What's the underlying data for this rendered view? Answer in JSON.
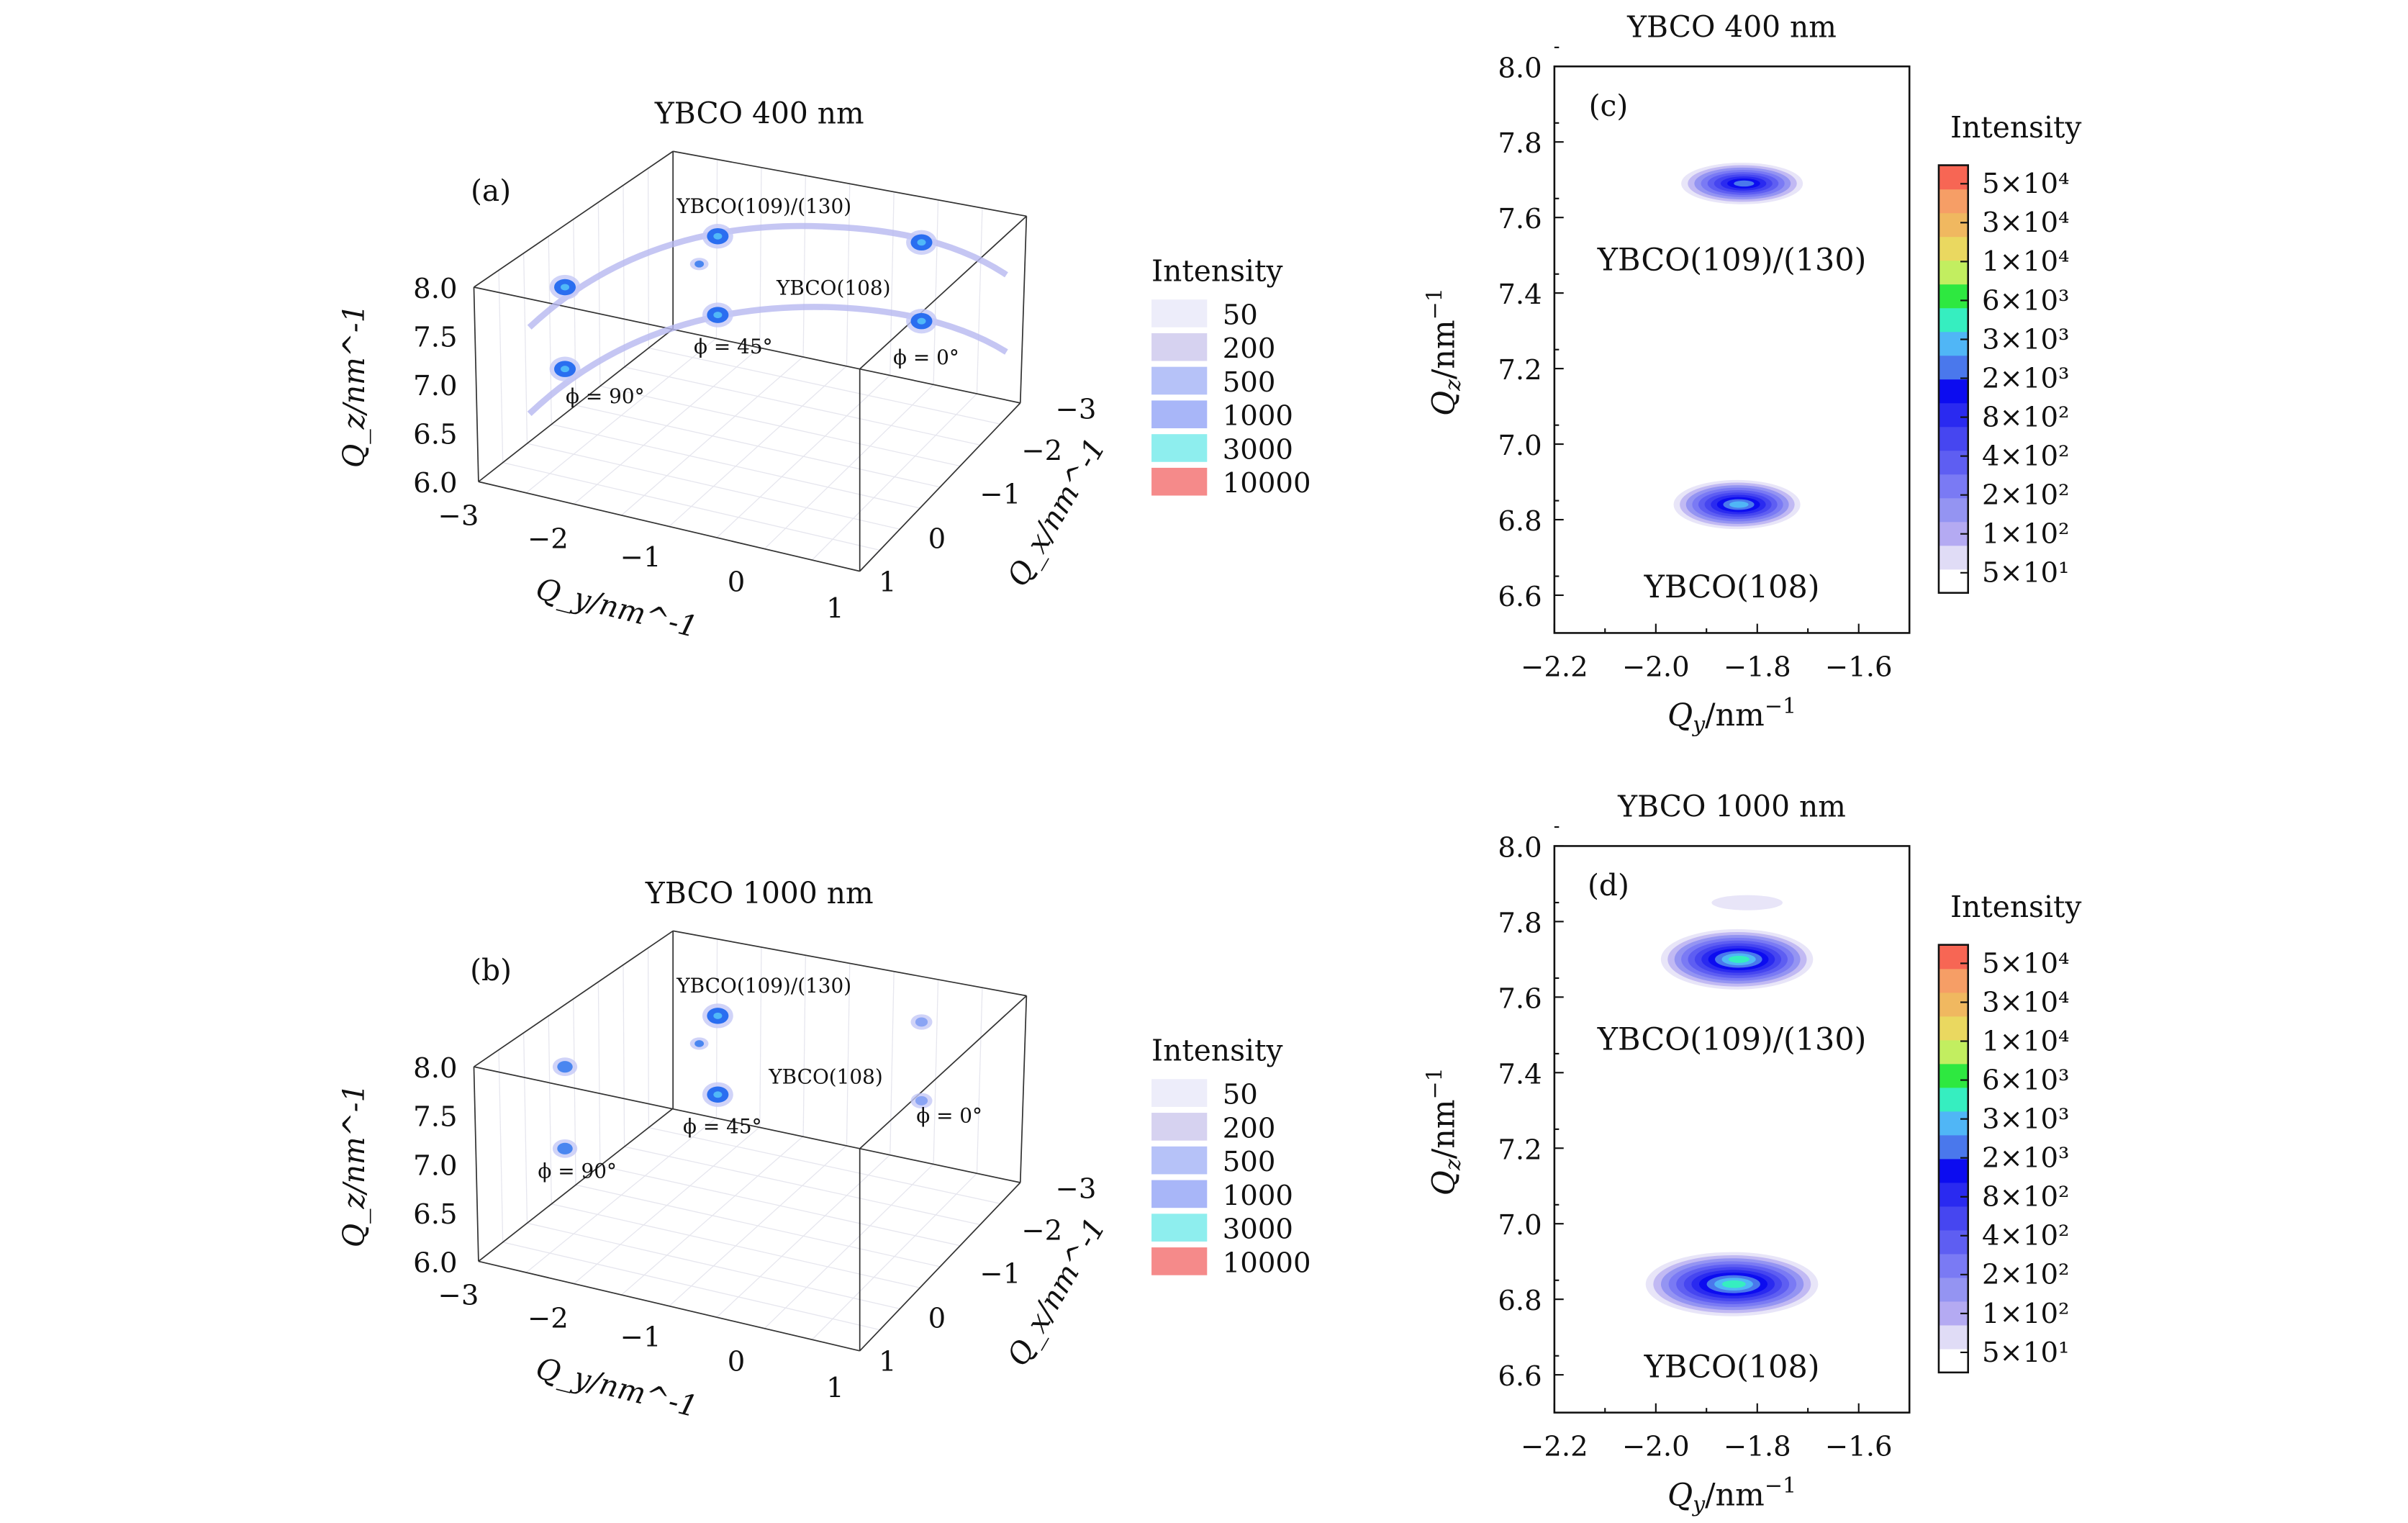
{
  "chart_data": [
    {
      "id": "a",
      "type": "scatter",
      "projection": "3d",
      "title": "YBCO 400 nm",
      "panel_label": "(a)",
      "xlabel": "Q_x/nm^-1",
      "ylabel": "Q_y/nm^-1",
      "zlabel": "Q_z/nm^-1",
      "xlabel_parts": [
        "Q",
        "x",
        "/nm",
        "−1"
      ],
      "ylabel_parts": [
        "Q",
        "y",
        "/nm",
        "−1"
      ],
      "zlabel_parts": [
        "Q",
        "z",
        "/nm",
        "−1"
      ],
      "xticks": [
        "−3",
        "−2",
        "−1",
        "0",
        "1"
      ],
      "yticks": [
        "−3",
        "−2",
        "−1",
        "0",
        "1"
      ],
      "zticks": [
        "8.0",
        "7.5",
        "7.0",
        "6.5",
        "6.0"
      ],
      "xlim": [
        -3,
        1
      ],
      "ylim": [
        -3,
        1
      ],
      "zlim": [
        6.0,
        8.0
      ],
      "annotations": [
        "YBCO(109)/(130)",
        "YBCO(108)",
        "ϕ = 45°",
        "ϕ = 0°",
        "ϕ = 90°"
      ],
      "legend_title": "Intensity",
      "legend": [
        {
          "label": "50",
          "color": "#ededfa"
        },
        {
          "label": "200",
          "color": "#d6d2f0"
        },
        {
          "label": "500",
          "color": "#b6c2f8"
        },
        {
          "label": "1000",
          "color": "#a8b6f8"
        },
        {
          "label": "3000",
          "color": "#8eeeee"
        },
        {
          "label": "10000",
          "color": "#f58a8a"
        }
      ],
      "legend_placement": "right",
      "arcs": true,
      "peaks": [
        {
          "peak": "YBCO(109)/(130)",
          "phi": 90,
          "intensity": 3000
        },
        {
          "peak": "YBCO(109)/(130)",
          "phi": 45,
          "intensity": 3000
        },
        {
          "peak": "YBCO(109)/(130)",
          "phi": 0,
          "intensity": 3000
        },
        {
          "peak": "YBCO(108)",
          "phi": 90,
          "intensity": 3000
        },
        {
          "peak": "YBCO(108)",
          "phi": 45,
          "intensity": 3000
        },
        {
          "peak": "YBCO(108)",
          "phi": 0,
          "intensity": 3000
        },
        {
          "peak": "minor",
          "phi": 50,
          "intensity": 1000
        }
      ]
    },
    {
      "id": "b",
      "type": "scatter",
      "projection": "3d",
      "title": "YBCO 1000 nm",
      "panel_label": "(b)",
      "xlabel": "Q_x/nm^-1",
      "ylabel": "Q_y/nm^-1",
      "zlabel": "Q_z/nm^-1",
      "xlabel_parts": [
        "Q",
        "x",
        "/nm",
        "−1"
      ],
      "ylabel_parts": [
        "Q",
        "y",
        "/nm",
        "−1"
      ],
      "zlabel_parts": [
        "Q",
        "z",
        "/nm",
        "−1"
      ],
      "xticks": [
        "−3",
        "−2",
        "−1",
        "0",
        "1"
      ],
      "yticks": [
        "−3",
        "−2",
        "−1",
        "0",
        "1"
      ],
      "zticks": [
        "8.0",
        "7.5",
        "7.0",
        "6.5",
        "6.0"
      ],
      "xlim": [
        -3,
        1
      ],
      "ylim": [
        -3,
        1
      ],
      "zlim": [
        6.0,
        8.0
      ],
      "annotations": [
        "YBCO(109)/(130)",
        "YBCO(108)",
        "ϕ = 45°",
        "ϕ = 0°",
        "ϕ = 90°"
      ],
      "legend_title": "Intensity",
      "legend": [
        {
          "label": "50",
          "color": "#ededfa"
        },
        {
          "label": "200",
          "color": "#d6d2f0"
        },
        {
          "label": "500",
          "color": "#b6c2f8"
        },
        {
          "label": "1000",
          "color": "#a8b6f8"
        },
        {
          "label": "3000",
          "color": "#8eeeee"
        },
        {
          "label": "10000",
          "color": "#f58a8a"
        }
      ],
      "legend_placement": "right",
      "arcs": false,
      "peaks": [
        {
          "peak": "YBCO(109)/(130)",
          "phi": 90,
          "intensity": 1000
        },
        {
          "peak": "YBCO(109)/(130)",
          "phi": 45,
          "intensity": 3000
        },
        {
          "peak": "YBCO(109)/(130)",
          "phi": 0,
          "intensity": 500
        },
        {
          "peak": "YBCO(108)",
          "phi": 90,
          "intensity": 1000
        },
        {
          "peak": "YBCO(108)",
          "phi": 45,
          "intensity": 3000
        },
        {
          "peak": "YBCO(108)",
          "phi": 0,
          "intensity": 500
        },
        {
          "peak": "minor",
          "phi": 50,
          "intensity": 1000
        }
      ]
    },
    {
      "id": "c",
      "type": "heatmap",
      "title": "YBCO 400 nm",
      "panel_label": "(c)",
      "xlabel_parts": [
        "Q",
        "y",
        "/nm",
        "−1"
      ],
      "ylabel_parts": [
        "Q",
        "z",
        "/nm",
        "−1"
      ],
      "xlim": [
        -2.2,
        -1.5
      ],
      "ylim": [
        6.5,
        8.0
      ],
      "xticks": [
        -2.2,
        -2.0,
        -1.8,
        -1.6
      ],
      "xtick_labels": [
        "−2.2",
        "−2.0",
        "−1.8",
        "−1.6"
      ],
      "yticks": [
        6.6,
        6.8,
        7.0,
        7.2,
        7.4,
        7.6,
        7.8,
        8.0
      ],
      "ytick_labels": [
        "6.6",
        "6.8",
        "7.0",
        "7.2",
        "7.4",
        "7.6",
        "7.8",
        "8.0"
      ],
      "peaks": [
        {
          "label": "YBCO(109)/(130)",
          "qy": -1.83,
          "qz": 7.69,
          "max_level": 9,
          "sx": 0.12,
          "sy": 0.055
        },
        {
          "label": "YBCO(108)",
          "qy": -1.84,
          "qz": 6.84,
          "max_level": 10,
          "sx": 0.125,
          "sy": 0.065
        }
      ],
      "colorbar_title": "Intensity",
      "colorbar_ticks": [
        "5×10⁴",
        "3×10⁴",
        "1×10⁴",
        "6×10³",
        "3×10³",
        "2×10³",
        "8×10²",
        "4×10²",
        "2×10²",
        "1×10²",
        "5×10¹"
      ],
      "colormap": [
        "#ffffff",
        "#e0dcf6",
        "#b4aaf2",
        "#9494f2",
        "#7a7af4",
        "#5e5ef2",
        "#4646f0",
        "#2a2af0",
        "#0c0cf0",
        "#4a78ec",
        "#50b6f6",
        "#36eec0",
        "#2ee840",
        "#c2ee60",
        "#ead860",
        "#f0b860",
        "#f69e66",
        "#f76654"
      ]
    },
    {
      "id": "d",
      "type": "heatmap",
      "title": "YBCO 1000 nm",
      "panel_label": "(d)",
      "xlabel_parts": [
        "Q",
        "y",
        "/nm",
        "−1"
      ],
      "ylabel_parts": [
        "Q",
        "z",
        "/nm",
        "−1"
      ],
      "xlim": [
        -2.2,
        -1.5
      ],
      "ylim": [
        6.5,
        8.0
      ],
      "xticks": [
        -2.2,
        -2.0,
        -1.8,
        -1.6
      ],
      "xtick_labels": [
        "−2.2",
        "−2.0",
        "−1.8",
        "−1.6"
      ],
      "yticks": [
        6.6,
        6.8,
        7.0,
        7.2,
        7.4,
        7.6,
        7.8,
        8.0
      ],
      "ytick_labels": [
        "6.6",
        "6.8",
        "7.0",
        "7.2",
        "7.4",
        "7.6",
        "7.8",
        "8.0"
      ],
      "peaks": [
        {
          "label": "YBCO(109)/(130)",
          "qy": -1.84,
          "qz": 7.7,
          "max_level": 11,
          "sx": 0.15,
          "sy": 0.08
        },
        {
          "label": "",
          "qy": -1.82,
          "qz": 7.85,
          "max_level": 1,
          "sx": 0.07,
          "sy": 0.02
        },
        {
          "label": "YBCO(108)",
          "qy": -1.85,
          "qz": 6.84,
          "max_level": 11,
          "sx": 0.17,
          "sy": 0.085
        }
      ],
      "colorbar_title": "Intensity",
      "colorbar_ticks": [
        "5×10⁴",
        "3×10⁴",
        "1×10⁴",
        "6×10³",
        "3×10³",
        "2×10³",
        "8×10²",
        "4×10²",
        "2×10²",
        "1×10²",
        "5×10¹"
      ],
      "colormap": [
        "#ffffff",
        "#e0dcf6",
        "#b4aaf2",
        "#9494f2",
        "#7a7af4",
        "#5e5ef2",
        "#4646f0",
        "#2a2af0",
        "#0c0cf0",
        "#4a78ec",
        "#50b6f6",
        "#36eec0",
        "#2ee840",
        "#c2ee60",
        "#ead860",
        "#f0b860",
        "#f69e66",
        "#f76654"
      ]
    }
  ]
}
